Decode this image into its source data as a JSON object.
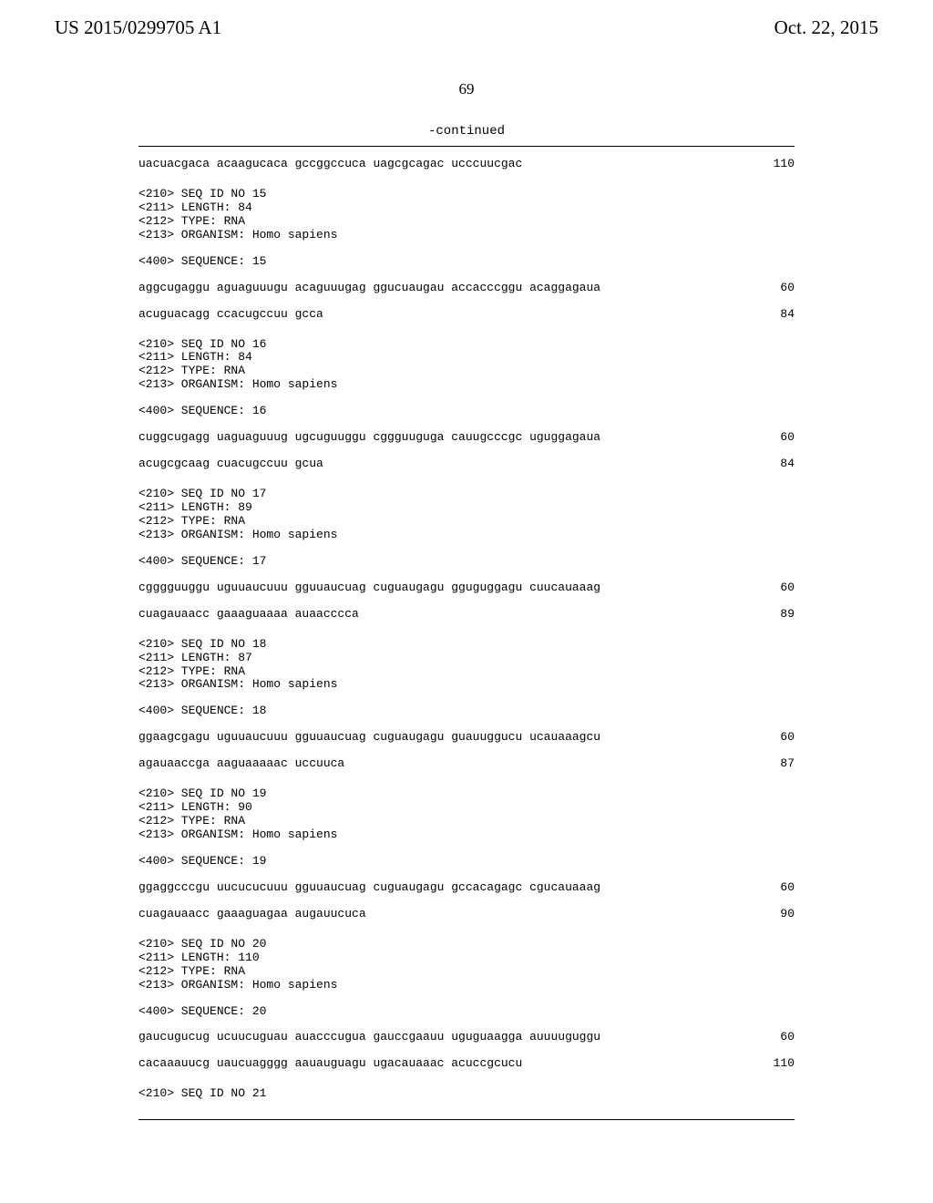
{
  "header": {
    "patent_number": "US 2015/0299705 A1",
    "date": "Oct. 22, 2015"
  },
  "page_number": "69",
  "continued_label": "-continued",
  "trailing": "<210> SEQ ID NO 21",
  "entries": [
    {
      "leading_rows": [
        {
          "seq": "uacuacgaca acaagucaca gccggccuca uagcgcagac ucccuucgac",
          "num": "110"
        }
      ],
      "meta": [
        "<210> SEQ ID NO 15",
        "<211> LENGTH: 84",
        "<212> TYPE: RNA",
        "<213> ORGANISM: Homo sapiens"
      ],
      "sequence_header": "<400> SEQUENCE: 15",
      "rows": [
        {
          "seq": "aggcugaggu aguaguuugu acaguuugag ggucuaugau accacccggu acaggagaua",
          "num": "60"
        },
        {
          "seq": "acuguacagg ccacugccuu gcca",
          "num": "84"
        }
      ]
    },
    {
      "meta": [
        "<210> SEQ ID NO 16",
        "<211> LENGTH: 84",
        "<212> TYPE: RNA",
        "<213> ORGANISM: Homo sapiens"
      ],
      "sequence_header": "<400> SEQUENCE: 16",
      "rows": [
        {
          "seq": "cuggcugagg uaguaguuug ugcuguuggu cggguuguga cauugcccgc uguggagaua",
          "num": "60"
        },
        {
          "seq": "acugcgcaag cuacugccuu gcua",
          "num": "84"
        }
      ]
    },
    {
      "meta": [
        "<210> SEQ ID NO 17",
        "<211> LENGTH: 89",
        "<212> TYPE: RNA",
        "<213> ORGANISM: Homo sapiens"
      ],
      "sequence_header": "<400> SEQUENCE: 17",
      "rows": [
        {
          "seq": "cgggguuggu uguuaucuuu gguuaucuag cuguaugagu gguguggagu cuucauaaag",
          "num": "60"
        },
        {
          "seq": "cuagauaacc gaaaguaaaa auaacccca",
          "num": "89"
        }
      ]
    },
    {
      "meta": [
        "<210> SEQ ID NO 18",
        "<211> LENGTH: 87",
        "<212> TYPE: RNA",
        "<213> ORGANISM: Homo sapiens"
      ],
      "sequence_header": "<400> SEQUENCE: 18",
      "rows": [
        {
          "seq": "ggaagcgagu uguuaucuuu gguuaucuag cuguaugagu guauuggucu ucauaaagcu",
          "num": "60"
        },
        {
          "seq": "agauaaccga aaguaaaaac uccuuca",
          "num": "87"
        }
      ]
    },
    {
      "meta": [
        "<210> SEQ ID NO 19",
        "<211> LENGTH: 90",
        "<212> TYPE: RNA",
        "<213> ORGANISM: Homo sapiens"
      ],
      "sequence_header": "<400> SEQUENCE: 19",
      "rows": [
        {
          "seq": "ggaggcccgu uucucucuuu gguuaucuag cuguaugagu gccacagagc cgucauaaag",
          "num": "60"
        },
        {
          "seq": "cuagauaacc gaaaguagaa augauucuca",
          "num": "90"
        }
      ]
    },
    {
      "meta": [
        "<210> SEQ ID NO 20",
        "<211> LENGTH: 110",
        "<212> TYPE: RNA",
        "<213> ORGANISM: Homo sapiens"
      ],
      "sequence_header": "<400> SEQUENCE: 20",
      "rows": [
        {
          "seq": "gaucugucug ucuucuguau auacccugua gauccgaauu uguguaagga auuuuguggu",
          "num": "60"
        },
        {
          "seq": "cacaaauucg uaucuagggg aauauguagu ugacauaaac acuccgcucu",
          "num": "110"
        }
      ]
    }
  ]
}
